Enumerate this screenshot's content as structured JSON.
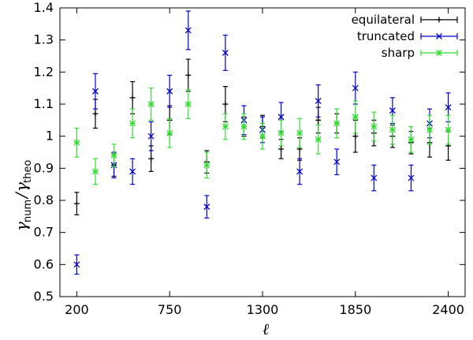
{
  "chart_data": {
    "type": "scatter",
    "title": "",
    "xlabel": "ℓ",
    "ylabel": {
      "symbol": "γ",
      "num_sub": "num",
      "theo_sub": "theo",
      "slash": "/"
    },
    "xlim": [
      100,
      2500
    ],
    "ylim": [
      0.5,
      1.4
    ],
    "x_ticks": [
      200,
      750,
      1300,
      1850,
      2400
    ],
    "y_ticks": [
      0.5,
      0.6,
      0.7,
      0.8,
      0.9,
      1,
      1.1,
      1.2,
      1.3,
      1.4
    ],
    "x_tick_labels": [
      "200",
      "750",
      "1300",
      "1850",
      "2400"
    ],
    "y_tick_labels": [
      "0.5",
      "0.6",
      "0.7",
      "0.8",
      "0.9",
      "1",
      "1.1",
      "1.2",
      "1.3",
      "1.4"
    ],
    "grid": false,
    "legend_position": "top-right",
    "series": [
      {
        "name": "equilateral",
        "color": "#000000",
        "marker": "plus",
        "x": [
          200,
          310,
          420,
          530,
          640,
          750,
          860,
          970,
          1080,
          1190,
          1300,
          1410,
          1520,
          1630,
          1740,
          1850,
          1960,
          2070,
          2180,
          2290,
          2400
        ],
        "y": [
          0.79,
          1.07,
          0.91,
          1.12,
          0.93,
          1.05,
          1.19,
          0.92,
          1.1,
          1.03,
          1.03,
          0.96,
          0.96,
          1.05,
          1.04,
          1.0,
          1.01,
          1.0,
          0.98,
          0.98,
          0.97
        ],
        "err": [
          0.035,
          0.045,
          0.035,
          0.05,
          0.04,
          0.045,
          0.05,
          0.035,
          0.055,
          0.03,
          0.035,
          0.03,
          0.035,
          0.04,
          0.03,
          0.05,
          0.04,
          0.035,
          0.035,
          0.045,
          0.045
        ]
      },
      {
        "name": "truncated",
        "color": "#0000cc",
        "marker": "x",
        "x": [
          200,
          310,
          420,
          530,
          640,
          750,
          860,
          970,
          1080,
          1190,
          1300,
          1410,
          1520,
          1630,
          1740,
          1850,
          1960,
          2070,
          2180,
          2290,
          2400
        ],
        "y": [
          0.6,
          1.14,
          0.91,
          0.89,
          1.0,
          1.14,
          1.33,
          0.78,
          1.26,
          1.05,
          1.02,
          1.06,
          0.89,
          1.11,
          0.92,
          1.15,
          0.87,
          1.08,
          0.87,
          1.04,
          1.09
        ],
        "err": [
          0.03,
          0.055,
          0.04,
          0.04,
          0.045,
          0.05,
          0.06,
          0.035,
          0.055,
          0.045,
          0.04,
          0.045,
          0.04,
          0.05,
          0.04,
          0.05,
          0.04,
          0.04,
          0.04,
          0.045,
          0.045
        ]
      },
      {
        "name": "sharp",
        "color": "#33dd33",
        "marker": "star",
        "x": [
          200,
          310,
          420,
          530,
          640,
          750,
          860,
          970,
          1080,
          1190,
          1300,
          1410,
          1520,
          1630,
          1740,
          1850,
          1960,
          2070,
          2180,
          2290,
          2400
        ],
        "y": [
          0.98,
          0.89,
          0.94,
          1.04,
          1.1,
          1.01,
          1.1,
          0.91,
          1.03,
          1.03,
          1.0,
          1.01,
          1.01,
          0.99,
          1.04,
          1.06,
          1.03,
          1.02,
          0.99,
          1.02,
          1.02
        ],
        "err": [
          0.045,
          0.04,
          0.035,
          0.045,
          0.05,
          0.045,
          0.045,
          0.04,
          0.04,
          0.04,
          0.04,
          0.04,
          0.045,
          0.045,
          0.045,
          0.05,
          0.045,
          0.045,
          0.04,
          0.045,
          0.045
        ]
      }
    ]
  }
}
